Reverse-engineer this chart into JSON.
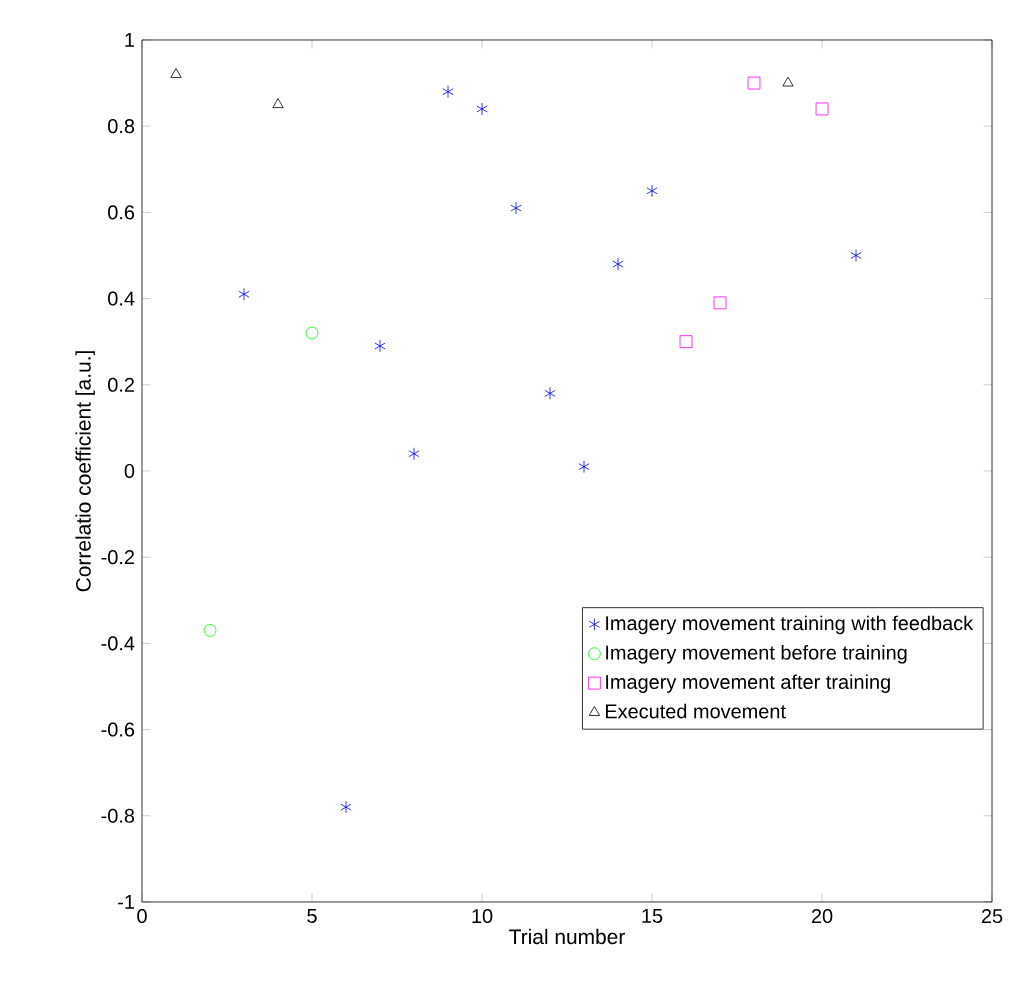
{
  "chart_data": {
    "type": "scatter",
    "xlabel": "Trial number",
    "ylabel": "Correlatio coefficient [a.u.]",
    "xlim": [
      0,
      25
    ],
    "ylim": [
      -1,
      1
    ],
    "xticks": [
      0,
      5,
      10,
      15,
      20,
      25
    ],
    "yticks": [
      -1,
      -0.8,
      -0.6,
      -0.4,
      -0.2,
      0,
      0.2,
      0.4,
      0.6,
      0.8,
      1
    ],
    "grid": false,
    "legend": "bottom right",
    "series": [
      {
        "name": "Imagery movement training with feedback",
        "color": "#0000ff",
        "marker": "cross",
        "x": [
          3,
          6,
          7,
          8,
          9,
          10,
          11,
          12,
          13,
          14,
          15,
          21
        ],
        "values": [
          0.41,
          -0.78,
          0.29,
          0.04,
          0.88,
          0.84,
          0.61,
          0.18,
          0.01,
          0.48,
          0.65,
          0.5
        ]
      },
      {
        "name": "Imagery movement before training",
        "color": "#00ff00",
        "marker": "circle",
        "x": [
          2,
          5
        ],
        "values": [
          -0.37,
          0.32
        ]
      },
      {
        "name": "Imagery movement after training",
        "color": "#ff00ff",
        "marker": "square",
        "x": [
          16,
          17,
          18,
          20
        ],
        "values": [
          0.3,
          0.39,
          0.9,
          0.84
        ]
      },
      {
        "name": "Executed movement",
        "color": "#000000",
        "marker": "triangle",
        "x": [
          1,
          4,
          19
        ],
        "values": [
          0.92,
          0.85,
          0.9
        ]
      }
    ]
  }
}
